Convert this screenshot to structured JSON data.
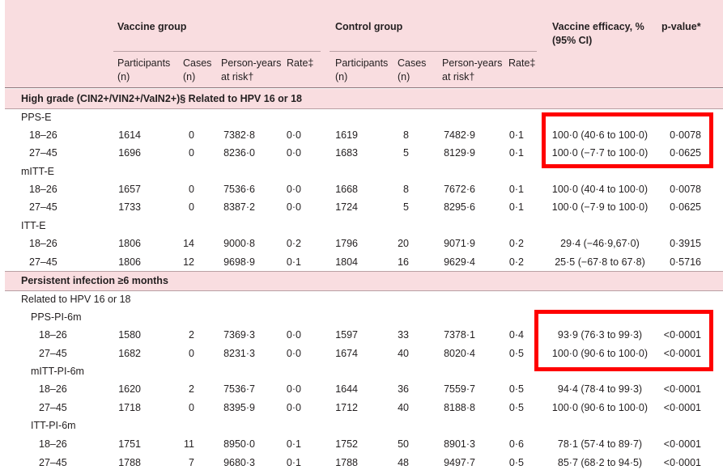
{
  "header": {
    "vaccine_group": "Vaccine group",
    "control_group": "Control group",
    "efficacy_line1": "Vaccine efficacy, %",
    "efficacy_line2": "(95% CI)",
    "pvalue": "p-value*",
    "participants_1": "Participants",
    "participants_2": "(n)",
    "cases_1": "Cases",
    "cases_2": "(n)",
    "py_1": "Person-years",
    "py_2": "at risk†",
    "rate": "Rate‡"
  },
  "sections": {
    "high_grade": "High grade (CIN2+/VIN2+/VaIN2+)§ Related to HPV 16 or 18",
    "persistent": "Persistent infection ≥6 months",
    "related": "Related to HPV 16 or 18"
  },
  "groups": {
    "pps_e": "PPS-E",
    "mitt_e": "mITT-E",
    "itt_e": "ITT-E",
    "pps_pi": "PPS-PI-6m",
    "mitt_pi": "mITT-PI-6m",
    "itt_pi": "ITT-PI-6m"
  },
  "rows": [
    {
      "age": "18–26",
      "vp": "1614",
      "vc": "0",
      "vpy": "7382·8",
      "vr": "0·0",
      "cp": "1619",
      "cc": "8",
      "cpy": "7482·9",
      "cr": "0·1",
      "eff": "100·0 (40·6 to 100·0)",
      "p": "0·0078"
    },
    {
      "age": "27–45",
      "vp": "1696",
      "vc": "0",
      "vpy": "8236·0",
      "vr": "0·0",
      "cp": "1683",
      "cc": "5",
      "cpy": "8129·9",
      "cr": "0·1",
      "eff": "100·0 (−7·7 to 100·0)",
      "p": "0·0625"
    },
    {
      "age": "18–26",
      "vp": "1657",
      "vc": "0",
      "vpy": "7536·6",
      "vr": "0·0",
      "cp": "1668",
      "cc": "8",
      "cpy": "7672·6",
      "cr": "0·1",
      "eff": "100·0 (40·4 to 100·0)",
      "p": "0·0078"
    },
    {
      "age": "27–45",
      "vp": "1733",
      "vc": "0",
      "vpy": "8387·2",
      "vr": "0·0",
      "cp": "1724",
      "cc": "5",
      "cpy": "8295·6",
      "cr": "0·1",
      "eff": "100·0 (−7·9 to 100·0)",
      "p": "0·0625"
    },
    {
      "age": "18–26",
      "vp": "1806",
      "vc": "14",
      "vpy": "9000·8",
      "vr": "0·2",
      "cp": "1796",
      "cc": "20",
      "cpy": "9071·9",
      "cr": "0·2",
      "eff": "29·4 (−46·9,67·0)",
      "p": "0·3915"
    },
    {
      "age": "27–45",
      "vp": "1806",
      "vc": "12",
      "vpy": "9698·9",
      "vr": "0·1",
      "cp": "1804",
      "cc": "16",
      "cpy": "9629·4",
      "cr": "0·2",
      "eff": "25·5 (−67·8 to 67·8)",
      "p": "0·5716"
    },
    {
      "age": "18–26",
      "vp": "1580",
      "vc": "2",
      "vpy": "7369·3",
      "vr": "0·0",
      "cp": "1597",
      "cc": "33",
      "cpy": "7378·1",
      "cr": "0·4",
      "eff": "93·9 (76·3 to 99·3)",
      "p": "<0·0001"
    },
    {
      "age": "27–45",
      "vp": "1682",
      "vc": "0",
      "vpy": "8231·3",
      "vr": "0·0",
      "cp": "1674",
      "cc": "40",
      "cpy": "8020·4",
      "cr": "0·5",
      "eff": "100·0 (90·6 to 100·0)",
      "p": "<0·0001"
    },
    {
      "age": "18–26",
      "vp": "1620",
      "vc": "2",
      "vpy": "7536·7",
      "vr": "0·0",
      "cp": "1644",
      "cc": "36",
      "cpy": "7559·7",
      "cr": "0·5",
      "eff": "94·4 (78·4 to 99·3)",
      "p": "<0·0001"
    },
    {
      "age": "27–45",
      "vp": "1718",
      "vc": "0",
      "vpy": "8395·9",
      "vr": "0·0",
      "cp": "1712",
      "cc": "40",
      "cpy": "8188·8",
      "cr": "0·5",
      "eff": "100·0 (90·6 to 100·0)",
      "p": "<0·0001"
    },
    {
      "age": "18–26",
      "vp": "1751",
      "vc": "11",
      "vpy": "8950·0",
      "vr": "0·1",
      "cp": "1752",
      "cc": "50",
      "cpy": "8901·3",
      "cr": "0·6",
      "eff": "78·1 (57·4 to 89·7)",
      "p": "<0·0001"
    },
    {
      "age": "27–45",
      "vp": "1788",
      "vc": "7",
      "vpy": "9680·3",
      "vr": "0·1",
      "cp": "1788",
      "cc": "48",
      "cpy": "9497·7",
      "cr": "0·5",
      "eff": "85·7 (68·2 to 94·5)",
      "p": "<0·0001"
    }
  ],
  "highlight_color": "#ff0000",
  "header_bg": "#f9dde0"
}
